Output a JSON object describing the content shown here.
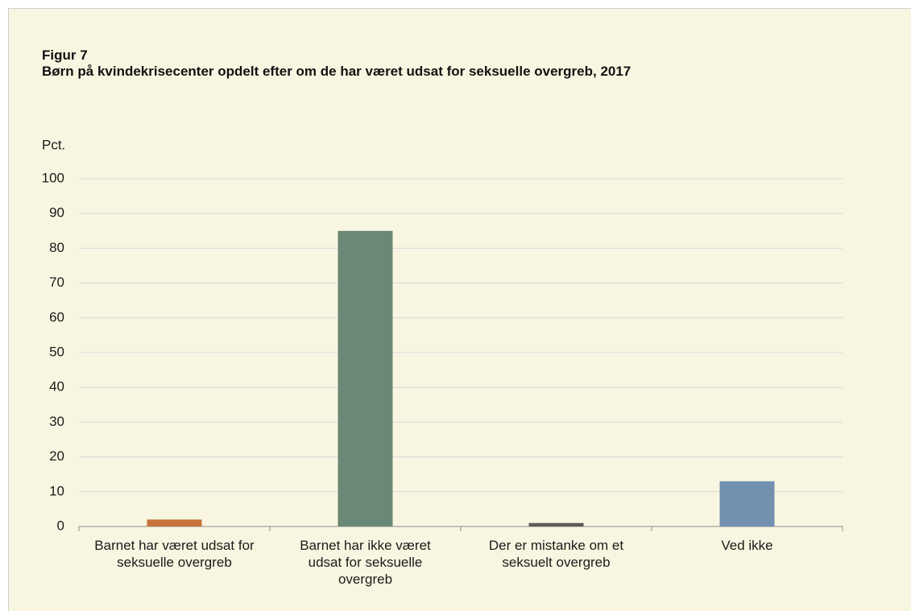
{
  "chart_data": {
    "type": "bar",
    "label": "Figur 7",
    "title": "Børn på kvindekrisecenter opdelt efter om de har været udsat for seksuelle overgreb, 2017",
    "y_label": "Pct.",
    "categories": [
      "Barnet har været udsat for seksuelle overgreb",
      "Barnet har ikke været udsat for seksuelle overgreb",
      "Der er mistanke om et seksuelt overgreb",
      "Ved ikke"
    ],
    "values": [
      2,
      85,
      1,
      13
    ],
    "colors": [
      "#c5733a",
      "#6b8876",
      "#5b5b5b",
      "#7191ae"
    ],
    "ylim": [
      0,
      100
    ],
    "yticks": [
      0,
      10,
      20,
      30,
      40,
      50,
      60,
      70,
      80,
      90,
      100
    ],
    "grid": true
  }
}
